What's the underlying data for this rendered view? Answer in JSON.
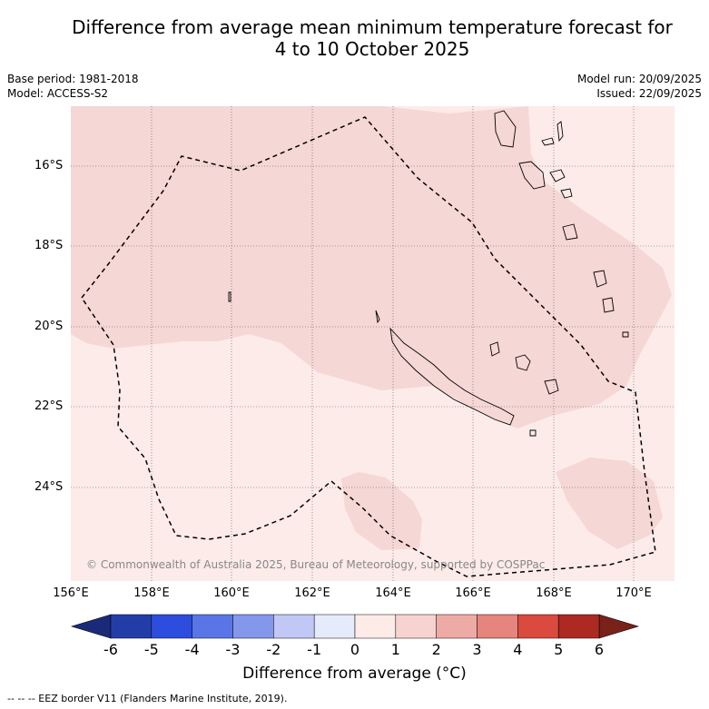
{
  "title": {
    "line1": "Difference from average mean minimum temperature forecast for",
    "line2": "4 to 10 October 2025"
  },
  "meta": {
    "base_period": "Base period: 1981-2018",
    "model": "Model: ACCESS-S2",
    "model_run": "Model run: 20/09/2025",
    "issued": "Issued: 22/09/2025"
  },
  "map": {
    "lat_labels": [
      "16°S",
      "18°S",
      "20°S",
      "22°S",
      "24°S"
    ],
    "lon_labels": [
      "156°E",
      "158°E",
      "160°E",
      "162°E",
      "164°E",
      "166°E",
      "168°E",
      "170°E"
    ],
    "copyright": "© Commonwealth of Australia 2025, Bureau of Meteorology, supported by COSPPac",
    "background_color": "#fcebe9",
    "anomaly_color": "#f5d7d5",
    "eez_legend": "-- -- -- EEZ border V11 (Flanders Marine Institute, 2019)."
  },
  "colorbar": {
    "ticks": [
      "-6",
      "-5",
      "-4",
      "-3",
      "-2",
      "-1",
      "0",
      "1",
      "2",
      "3",
      "4",
      "5",
      "6"
    ],
    "colors": [
      "#233da8",
      "#2d4ddf",
      "#5a76e6",
      "#8398eb",
      "#c1c8f5",
      "#e6ebfb",
      "#fdebe8",
      "#f7d3cf",
      "#eeaba5",
      "#e5857d",
      "#da4a3e",
      "#ac2a22"
    ],
    "low_extend_color": "#1b2a78",
    "high_extend_color": "#78221a",
    "title": "Difference from average (°C)"
  }
}
